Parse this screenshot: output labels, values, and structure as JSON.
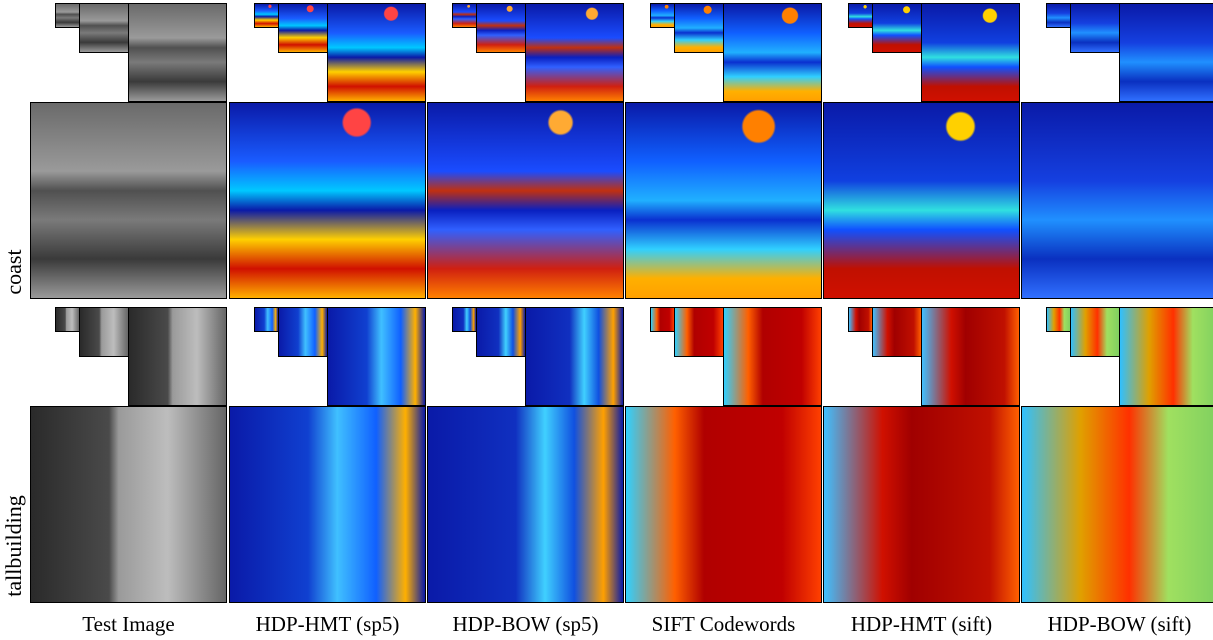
{
  "rows": [
    {
      "label": "coast"
    },
    {
      "label": "tallbuilding"
    }
  ],
  "columns": [
    "Test Image",
    "HDP-HMT (sp5)",
    "HDP-BOW (sp5)",
    "SIFT Codewords",
    "HDP-HMT (sift)",
    "HDP-BOW (sift)"
  ]
}
